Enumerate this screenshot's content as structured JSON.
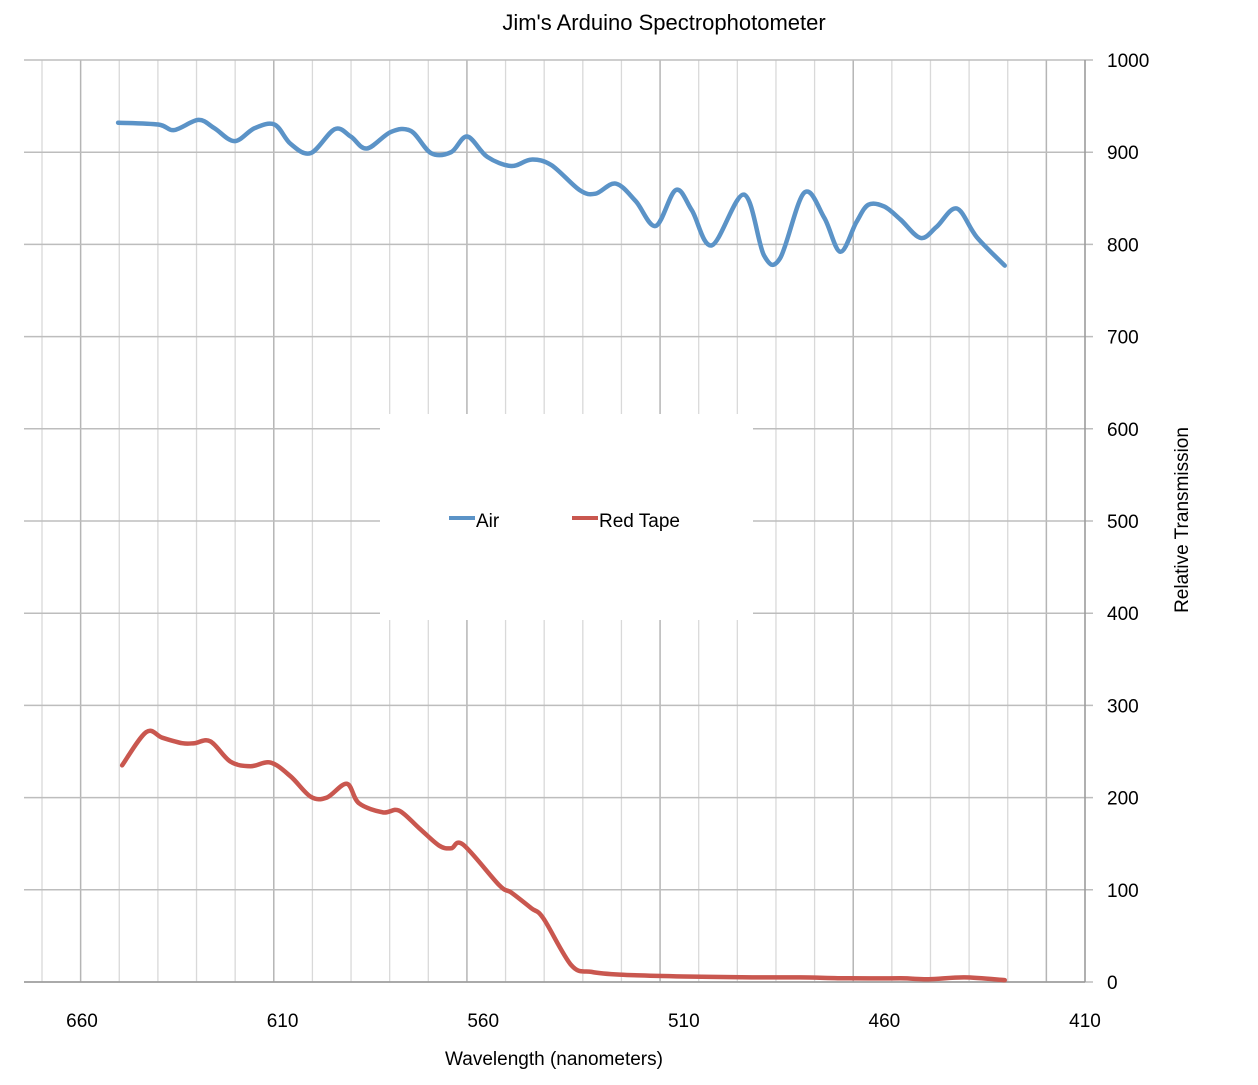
{
  "chart_data": {
    "type": "line",
    "title": "Jim's Arduino Spectrophotometer",
    "xlabel": "Wavelength (nanometers)",
    "ylabel": "Relative Transmission",
    "xlim": [
      670,
      410
    ],
    "x_reversed": true,
    "ylim": [
      0,
      1000
    ],
    "x_ticks": [
      660,
      610,
      560,
      510,
      460,
      410
    ],
    "y_ticks": [
      0,
      100,
      200,
      300,
      400,
      500,
      600,
      700,
      800,
      900,
      1000
    ],
    "y_axis_side": "right",
    "grid": true,
    "legend_position": "center",
    "series": [
      {
        "name": "Air",
        "color": "#5b93c7",
        "x": [
          651,
          641,
          637,
          631,
          627,
          622,
          617,
          612,
          608,
          603,
          597,
          593,
          589,
          583,
          578,
          573,
          568,
          564,
          559,
          553,
          548,
          543,
          536,
          532,
          527,
          522,
          517,
          512,
          508,
          503,
          495,
          490,
          486,
          480,
          475,
          471,
          467,
          464,
          460,
          456,
          451,
          447,
          442,
          437,
          430
        ],
        "y": [
          932,
          930,
          924,
          935,
          926,
          912,
          926,
          930,
          909,
          899,
          925,
          917,
          904,
          922,
          923,
          899,
          900,
          917,
          895,
          885,
          892,
          886,
          859,
          855,
          866,
          847,
          820,
          859,
          837,
          799,
          854,
          788,
          785,
          856,
          829,
          792,
          824,
          843,
          841,
          827,
          807,
          819,
          839,
          808,
          777
        ]
      },
      {
        "name": "Red Tape",
        "color": "#c9574f",
        "x": [
          650,
          644,
          640,
          635,
          632,
          628,
          623,
          618,
          613,
          608,
          603,
          599,
          594,
          591,
          585,
          581,
          576,
          571,
          568,
          565,
          556,
          553,
          548,
          545,
          538,
          533,
          526,
          510,
          493,
          481,
          469,
          456,
          449,
          440,
          430
        ],
        "y": [
          235,
          271,
          265,
          259,
          259,
          261,
          239,
          234,
          238,
          223,
          201,
          200,
          215,
          194,
          184,
          186,
          167,
          148,
          145,
          149,
          105,
          97,
          80,
          69,
          18,
          11,
          8,
          6,
          5,
          5,
          4,
          4,
          3,
          5,
          2
        ]
      }
    ]
  }
}
